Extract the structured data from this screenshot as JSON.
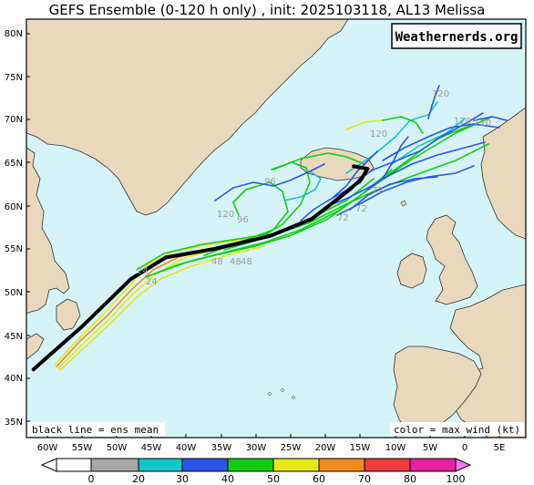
{
  "title": "GEFS Ensemble (0-120 h only) , init: 2025103118, AL13 Melissa",
  "watermark": "Weathernerds.org",
  "note_left": "black line = ens mean",
  "note_right": "color = max wind (kt)",
  "lat_labels": [
    "80N",
    "75N",
    "70N",
    "65N",
    "60N",
    "55N",
    "50N",
    "45N",
    "40N",
    "35N"
  ],
  "lon_labels": [
    "60W",
    "55W",
    "50W",
    "45W",
    "40W",
    "35W",
    "30W",
    "25W",
    "20W",
    "15W",
    "10W",
    "5W",
    "0",
    "5E"
  ],
  "colorbar": {
    "ticks": [
      "0",
      "20",
      "30",
      "40",
      "50",
      "60",
      "70",
      "80",
      "100"
    ],
    "colors": [
      "#ffffff",
      "#a6a6a6",
      "#12c7c7",
      "#2a55ea",
      "#12cc12",
      "#e6e61a",
      "#f08c1e",
      "#ee3a3a",
      "#e6209e",
      "#f07af0"
    ]
  },
  "hour_labels": [
    "120",
    "120",
    "120",
    "120",
    "120",
    "96",
    "96",
    "72",
    "72",
    "72",
    "48",
    "48",
    "48",
    "24",
    "24"
  ],
  "colors": {
    "ocean": "#d6f4f8",
    "land": "#e8d8bd",
    "coast": "#333333"
  },
  "mean_track": [
    [
      -62,
      41
    ],
    [
      -55,
      46
    ],
    [
      -48,
      51.5
    ],
    [
      -43,
      54
    ],
    [
      -36,
      55
    ],
    [
      -28,
      56.5
    ],
    [
      -22,
      58.5
    ],
    [
      -18,
      61
    ],
    [
      -15,
      63
    ],
    [
      -14,
      64.3
    ],
    [
      -16,
      64.6
    ]
  ]
}
